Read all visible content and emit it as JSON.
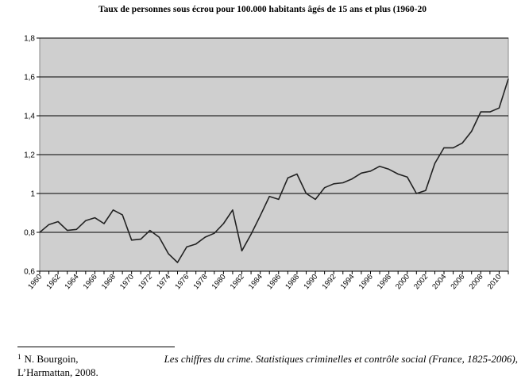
{
  "chart_data": {
    "type": "line",
    "title": "Taux de personnes sous écrou pour 100.000 habitants âgés de 15 ans et plus (1960-20",
    "xlabel": "",
    "ylabel": "",
    "ylim": [
      0.6,
      1.8
    ],
    "yticks": [
      "0,6",
      "0,8",
      "1",
      "1,2",
      "1,4",
      "1,6",
      "1,8"
    ],
    "x_tick_labels": [
      "1960",
      "1962",
      "1964",
      "1966",
      "1968",
      "1970",
      "1972",
      "1974",
      "1976",
      "1978",
      "1980",
      "1982",
      "1984",
      "1986",
      "1988",
      "1990",
      "1992",
      "1994",
      "1996",
      "1998",
      "2000",
      "2002",
      "2004",
      "2006",
      "2008",
      "2010"
    ],
    "grid": true,
    "x": [
      1960,
      1961,
      1962,
      1963,
      1964,
      1965,
      1966,
      1967,
      1968,
      1969,
      1970,
      1971,
      1972,
      1973,
      1974,
      1975,
      1976,
      1977,
      1978,
      1979,
      1980,
      1981,
      1982,
      1983,
      1984,
      1985,
      1986,
      1987,
      1988,
      1989,
      1990,
      1991,
      1992,
      1993,
      1994,
      1995,
      1996,
      1997,
      1998,
      1999,
      2000,
      2001,
      2002,
      2003,
      2004,
      2005,
      2006,
      2007,
      2008,
      2009,
      2010,
      2011
    ],
    "series": [
      {
        "values": [
          0.8,
          0.84,
          0.855,
          0.81,
          0.815,
          0.86,
          0.875,
          0.845,
          0.915,
          0.89,
          0.76,
          0.765,
          0.81,
          0.775,
          0.69,
          0.645,
          0.725,
          0.74,
          0.775,
          0.795,
          0.845,
          0.915,
          0.705,
          0.79,
          0.885,
          0.985,
          0.97,
          1.08,
          1.1,
          1.0,
          0.97,
          1.03,
          1.05,
          1.055,
          1.075,
          1.105,
          1.115,
          1.14,
          1.125,
          1.1,
          1.085,
          1.0,
          1.015,
          1.155,
          1.235,
          1.235,
          1.26,
          1.32,
          1.42,
          1.42,
          1.44,
          1.59
        ]
      }
    ],
    "colors": {
      "plot_bg": "#cfcfcf",
      "line": "#222222",
      "grid": "#000000"
    }
  },
  "footnote": {
    "marker": "1",
    "author": "N. Bourgoin,",
    "book_title": "Les chiffres du crime. Statistiques criminelles et contrôle social (France, 1825-2006)",
    "after_title": ",",
    "publisher": "L’Harmattan, 2008."
  }
}
